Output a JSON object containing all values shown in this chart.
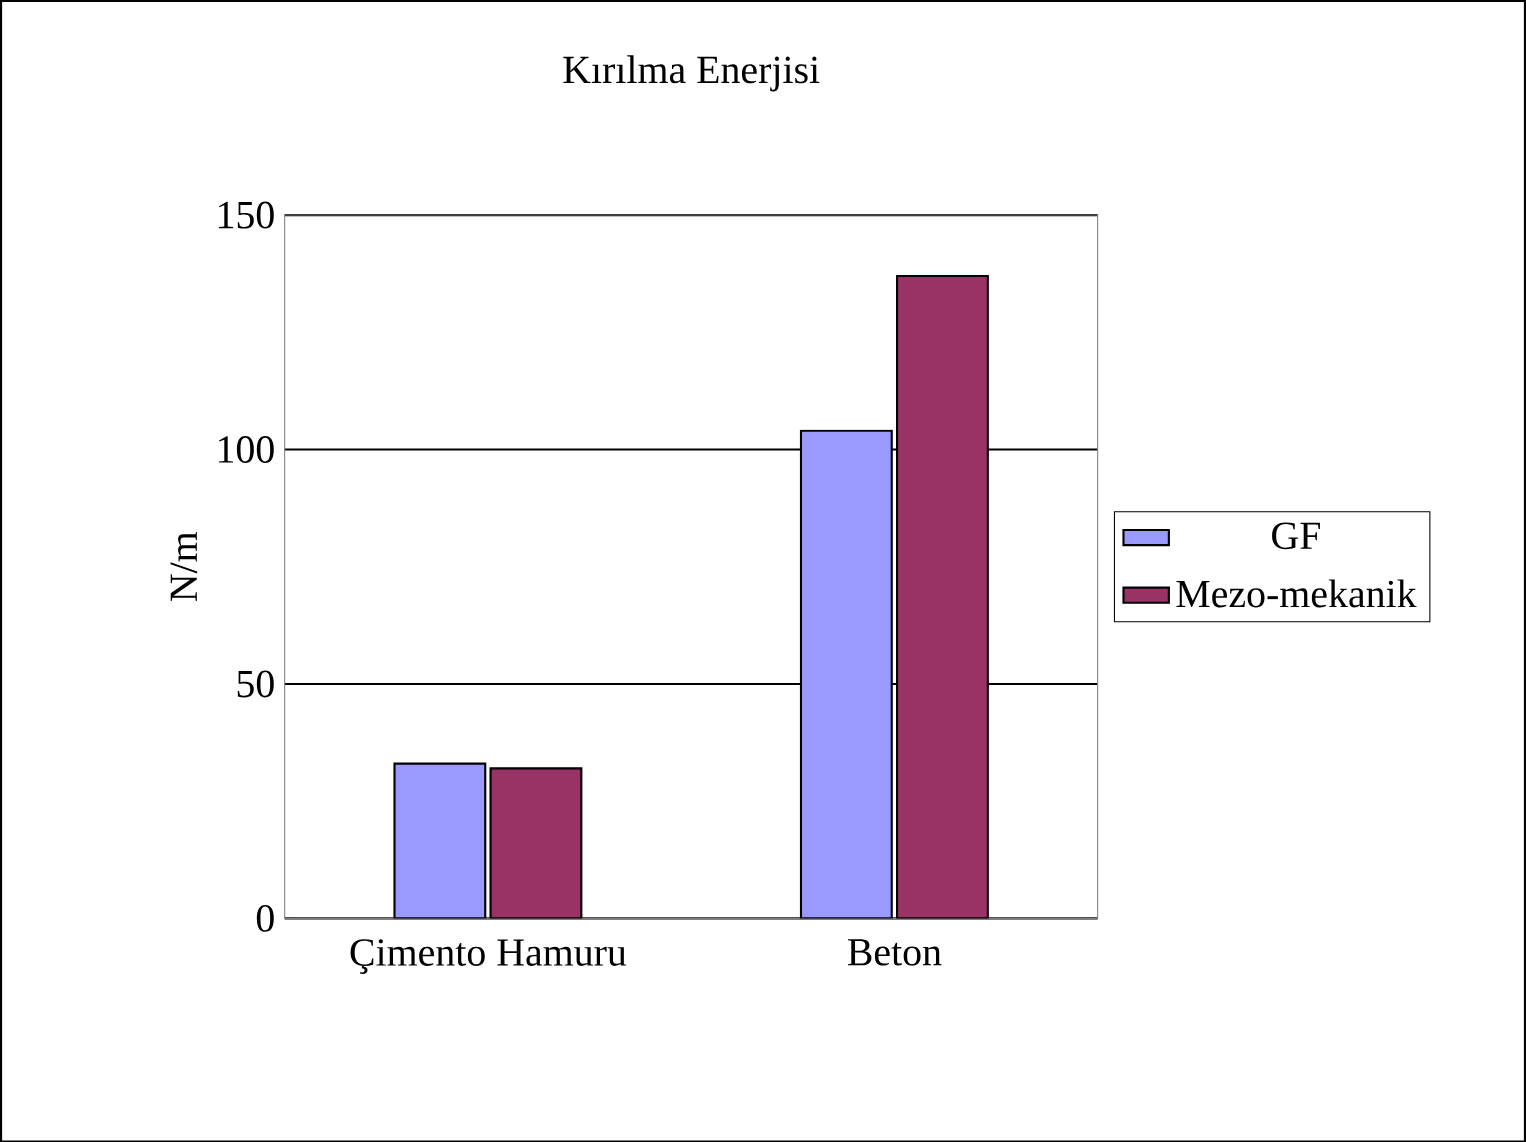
{
  "chart_data": {
    "type": "bar",
    "title": "Kırılma Enerjisi",
    "ylabel": "N/m",
    "categories": [
      "Çimento Hamuru",
      "Beton"
    ],
    "series": [
      {
        "name": "GF",
        "color": "#9999ff",
        "values": [
          33,
          104
        ]
      },
      {
        "name": "Mezo-mekanik",
        "color": "#993366",
        "values": [
          32,
          137
        ]
      }
    ],
    "ylim": [
      0,
      150
    ],
    "yticks": [
      0,
      50,
      100,
      150
    ],
    "grid": "y",
    "legend": "right"
  }
}
